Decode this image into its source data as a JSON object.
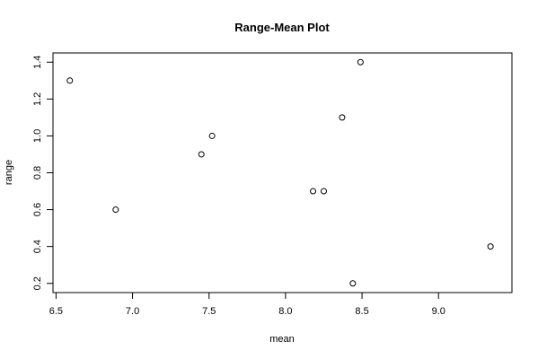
{
  "chart_data": {
    "type": "scatter",
    "title": "Range-Mean Plot",
    "xlabel": "mean",
    "ylabel": "range",
    "xlim": [
      6.48,
      9.48
    ],
    "ylim": [
      0.15,
      1.45
    ],
    "xticks": [
      6.5,
      7.0,
      7.5,
      8.0,
      8.5,
      9.0
    ],
    "xtick_labels": [
      "6.5",
      "7.0",
      "7.5",
      "8.0",
      "8.5",
      "9.0"
    ],
    "yticks": [
      0.2,
      0.4,
      0.6,
      0.8,
      1.0,
      1.2,
      1.4
    ],
    "ytick_labels": [
      "0.2",
      "0.4",
      "0.6",
      "0.8",
      "1.0",
      "1.2",
      "1.4"
    ],
    "grid": false,
    "points": [
      {
        "x": 6.59,
        "y": 1.3
      },
      {
        "x": 6.89,
        "y": 0.6
      },
      {
        "x": 7.45,
        "y": 0.9
      },
      {
        "x": 7.52,
        "y": 1.0
      },
      {
        "x": 8.18,
        "y": 0.7
      },
      {
        "x": 8.25,
        "y": 0.7
      },
      {
        "x": 8.37,
        "y": 1.1
      },
      {
        "x": 8.44,
        "y": 0.2
      },
      {
        "x": 8.49,
        "y": 1.4
      },
      {
        "x": 9.34,
        "y": 0.4
      }
    ],
    "colors": {
      "points": "#000000",
      "axes": "#000000",
      "background": "#ffffff"
    }
  }
}
